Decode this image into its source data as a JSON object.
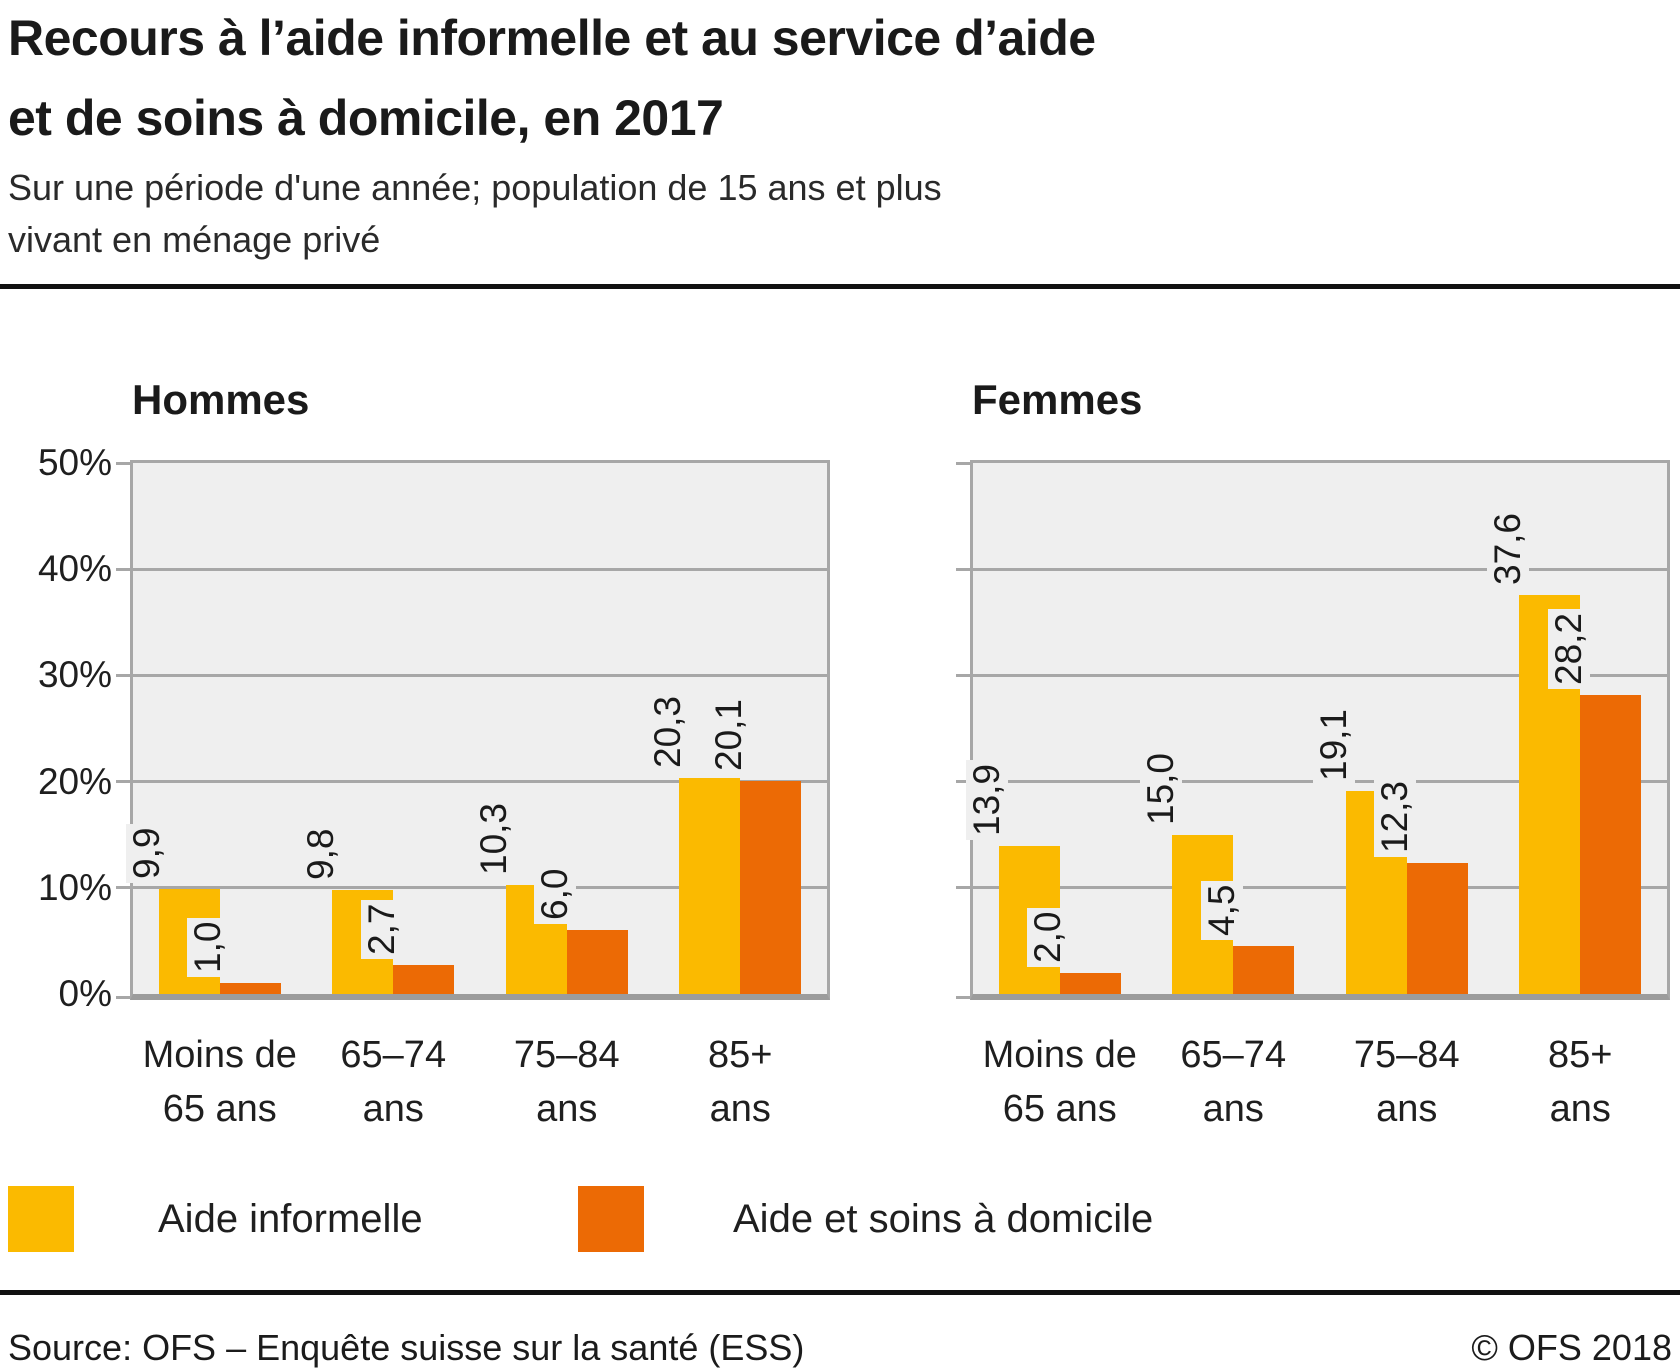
{
  "header": {
    "title_line1": "Recours à l’aide informelle et au service d’aide",
    "title_line2": "et de soins à domicile, en 2017",
    "subtitle_line1": "Sur une période d'une année; population de 15 ans et plus",
    "subtitle_line2": "vivant en ménage privé"
  },
  "chart_data": {
    "type": "bar",
    "title": "Recours à l’aide informelle et au service d’aide et de soins à domicile, en 2017",
    "subtitle": "Sur une période d'une année; population de 15 ans et plus vivant en ménage privé",
    "unit": "%",
    "ylim": [
      0,
      50
    ],
    "yticks": [
      "50%",
      "40%",
      "30%",
      "20%",
      "10%",
      "0%"
    ],
    "grid": true,
    "legend_position": "bottom",
    "plot_bg": "#efefef",
    "grid_color": "#a7a7a7",
    "categories": [
      [
        "Moins de",
        "65 ans"
      ],
      [
        "65–74",
        "ans"
      ],
      [
        "75–84",
        "ans"
      ],
      [
        "85+",
        "ans"
      ]
    ],
    "panels": [
      {
        "title": "Hommes",
        "series": [
          {
            "name": "Aide informelle",
            "color": "#fbba00",
            "values": [
              9.9,
              9.8,
              10.3,
              20.3
            ],
            "labels": [
              "9,9",
              "9,8",
              "10,3",
              "20,3"
            ]
          },
          {
            "name": "Aide et soins à domicile",
            "color": "#ec6a05",
            "values": [
              1.0,
              2.7,
              6.0,
              20.1
            ],
            "labels": [
              "1,0",
              "2,7",
              "6,0",
              "20,1"
            ]
          }
        ]
      },
      {
        "title": "Femmes",
        "series": [
          {
            "name": "Aide informelle",
            "color": "#fbba00",
            "values": [
              13.9,
              15.0,
              19.1,
              37.6
            ],
            "labels": [
              "13,9",
              "15,0",
              "19,1",
              "37,6"
            ]
          },
          {
            "name": "Aide et soins à domicile",
            "color": "#ec6a05",
            "values": [
              2.0,
              4.5,
              12.3,
              28.2
            ],
            "labels": [
              "2,0",
              "4,5",
              "12,3",
              "28,2"
            ]
          }
        ]
      }
    ],
    "legend": [
      {
        "label": "Aide informelle",
        "color": "#fbba00"
      },
      {
        "label": "Aide et soins à domicile",
        "color": "#ec6a05"
      }
    ]
  },
  "footer": {
    "source": "Source: OFS – Enquête suisse sur la santé (ESS)",
    "copyright": "© OFS 2018"
  }
}
